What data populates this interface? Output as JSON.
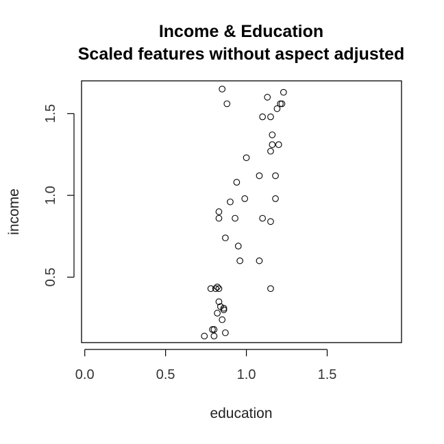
{
  "chart_data": {
    "type": "scatter",
    "title": "Income & Education",
    "subtitle": "Scaled features without aspect adjusted",
    "xlabel": "education",
    "ylabel": "income",
    "xlim": [
      -0.02,
      1.96
    ],
    "ylim": [
      0.1,
      1.7
    ],
    "x_ticks": [
      0.0,
      0.5,
      1.0,
      1.5
    ],
    "x_tick_labels": [
      "0.0",
      "0.5",
      "1.0",
      "1.5"
    ],
    "y_ticks": [
      0.5,
      1.0,
      1.5
    ],
    "y_tick_labels": [
      "0.5",
      "1.0",
      "1.5"
    ],
    "grid": false,
    "legend": "none",
    "points": [
      {
        "x": 0.85,
        "y": 1.65
      },
      {
        "x": 1.23,
        "y": 1.63
      },
      {
        "x": 1.13,
        "y": 1.6
      },
      {
        "x": 0.88,
        "y": 1.56
      },
      {
        "x": 1.21,
        "y": 1.56
      },
      {
        "x": 1.22,
        "y": 1.56
      },
      {
        "x": 1.19,
        "y": 1.53
      },
      {
        "x": 1.1,
        "y": 1.48
      },
      {
        "x": 1.15,
        "y": 1.48
      },
      {
        "x": 1.16,
        "y": 1.37
      },
      {
        "x": 1.16,
        "y": 1.31
      },
      {
        "x": 1.2,
        "y": 1.31
      },
      {
        "x": 1.15,
        "y": 1.27
      },
      {
        "x": 1.0,
        "y": 1.23
      },
      {
        "x": 1.08,
        "y": 1.12
      },
      {
        "x": 1.18,
        "y": 1.12
      },
      {
        "x": 0.94,
        "y": 1.08
      },
      {
        "x": 0.99,
        "y": 0.98
      },
      {
        "x": 1.18,
        "y": 0.98
      },
      {
        "x": 0.9,
        "y": 0.96
      },
      {
        "x": 0.83,
        "y": 0.9
      },
      {
        "x": 0.83,
        "y": 0.86
      },
      {
        "x": 0.93,
        "y": 0.86
      },
      {
        "x": 1.1,
        "y": 0.86
      },
      {
        "x": 1.15,
        "y": 0.84
      },
      {
        "x": 0.87,
        "y": 0.74
      },
      {
        "x": 0.95,
        "y": 0.69
      },
      {
        "x": 0.96,
        "y": 0.6
      },
      {
        "x": 1.08,
        "y": 0.6
      },
      {
        "x": 0.82,
        "y": 0.44
      },
      {
        "x": 0.78,
        "y": 0.43
      },
      {
        "x": 0.81,
        "y": 0.43
      },
      {
        "x": 0.83,
        "y": 0.43
      },
      {
        "x": 1.15,
        "y": 0.43
      },
      {
        "x": 0.83,
        "y": 0.35
      },
      {
        "x": 0.84,
        "y": 0.32
      },
      {
        "x": 0.86,
        "y": 0.31
      },
      {
        "x": 0.86,
        "y": 0.3
      },
      {
        "x": 0.82,
        "y": 0.28
      },
      {
        "x": 0.85,
        "y": 0.24
      },
      {
        "x": 0.79,
        "y": 0.18
      },
      {
        "x": 0.8,
        "y": 0.18
      },
      {
        "x": 0.87,
        "y": 0.16
      },
      {
        "x": 0.74,
        "y": 0.14
      },
      {
        "x": 0.8,
        "y": 0.14
      }
    ]
  }
}
